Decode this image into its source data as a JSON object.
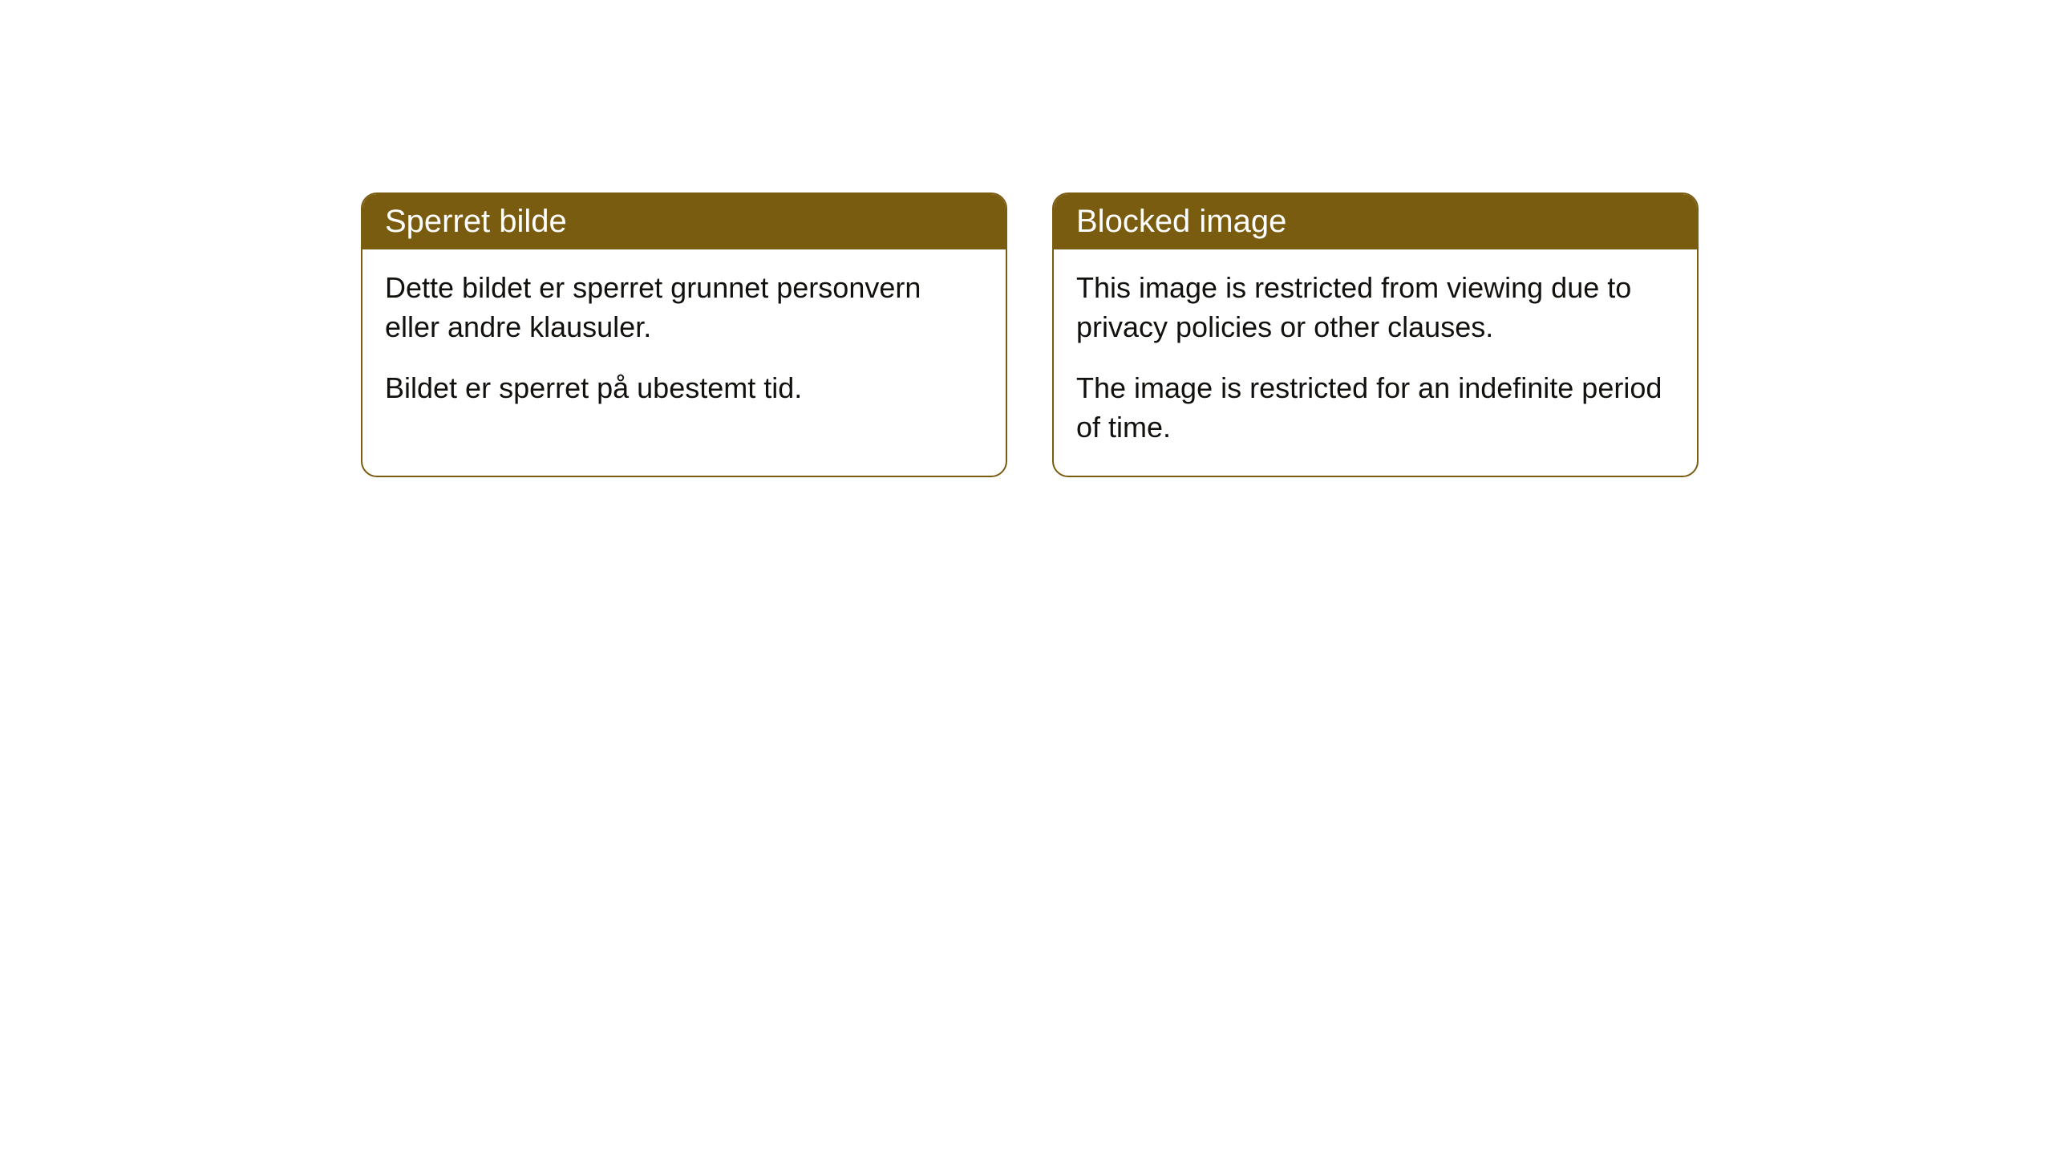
{
  "cards": [
    {
      "title": "Sperret bilde",
      "paragraph1": "Dette bildet er sperret grunnet personvern eller andre klausuler.",
      "paragraph2": "Bildet er sperret på ubestemt tid."
    },
    {
      "title": "Blocked image",
      "paragraph1": "This image is restricted from viewing due to privacy policies or other clauses.",
      "paragraph2": "The image is restricted for an indefinite period of time."
    }
  ],
  "styling": {
    "header_background": "#7a5c10",
    "header_text_color": "#ffffff",
    "border_color": "#7a5c10",
    "body_text_color": "#13110e",
    "page_background": "#ffffff",
    "border_radius": 20,
    "title_fontsize": 40,
    "body_fontsize": 36
  }
}
